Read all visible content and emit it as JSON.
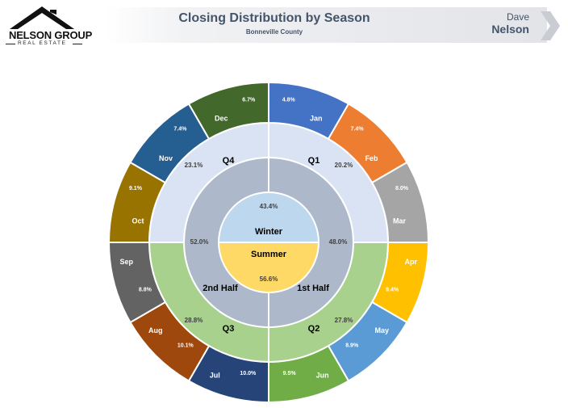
{
  "header": {
    "logo_name": "NELSON GROUP",
    "logo_sub": "REAL ESTATE",
    "title": "Closing Distribution by Season",
    "subtitle": "Bonneville County",
    "agent_first": "Dave",
    "agent_last": "Nelson"
  },
  "chart_data": {
    "type": "sunburst",
    "title": "Closing Distribution by Season",
    "subtitle": "Bonneville County",
    "rings": {
      "center": [
        {
          "label": "Winter",
          "value_label": "43.4%",
          "value": 43.4,
          "color": "#bdd7ee"
        },
        {
          "label": "Summer",
          "value_label": "56.6%",
          "value": 56.6,
          "color": "#ffd966"
        }
      ],
      "halves": [
        {
          "label": "1st Half",
          "value_label": "48.0%",
          "value": 48.0,
          "color": "#adb9ca"
        },
        {
          "label": "2nd Half",
          "value_label": "52.0%",
          "value": 52.0,
          "color": "#adb9ca"
        }
      ],
      "quarters": [
        {
          "label": "Q1",
          "value_label": "20.2%",
          "value": 20.2,
          "color": "#dae3f3"
        },
        {
          "label": "Q2",
          "value_label": "27.8%",
          "value": 27.8,
          "color": "#a9d18e"
        },
        {
          "label": "Q3",
          "value_label": "28.8%",
          "value": 28.8,
          "color": "#a9d18e"
        },
        {
          "label": "Q4",
          "value_label": "23.1%",
          "value": 23.1,
          "color": "#dae3f3"
        }
      ],
      "months": [
        {
          "label": "Jan",
          "value_label": "4.8%",
          "value": 4.8,
          "color": "#4472c4"
        },
        {
          "label": "Feb",
          "value_label": "7.4%",
          "value": 7.4,
          "color": "#ed7d31"
        },
        {
          "label": "Mar",
          "value_label": "8.0%",
          "value": 8.0,
          "color": "#a5a5a5"
        },
        {
          "label": "Apr",
          "value_label": "9.4%",
          "value": 9.4,
          "color": "#ffc000"
        },
        {
          "label": "May",
          "value_label": "8.9%",
          "value": 8.9,
          "color": "#5b9bd5"
        },
        {
          "label": "Jun",
          "value_label": "9.5%",
          "value": 9.5,
          "color": "#70ad47"
        },
        {
          "label": "Jul",
          "value_label": "10.0%",
          "value": 10.0,
          "color": "#264478"
        },
        {
          "label": "Aug",
          "value_label": "10.1%",
          "value": 10.1,
          "color": "#9e480e"
        },
        {
          "label": "Sep",
          "value_label": "8.8%",
          "value": 8.8,
          "color": "#636363"
        },
        {
          "label": "Oct",
          "value_label": "9.1%",
          "value": 9.1,
          "color": "#997300"
        },
        {
          "label": "Nov",
          "value_label": "7.4%",
          "value": 7.4,
          "color": "#255e91"
        },
        {
          "label": "Dec",
          "value_label": "6.7%",
          "value": 6.7,
          "color": "#43682b"
        }
      ]
    },
    "legend": "none"
  }
}
